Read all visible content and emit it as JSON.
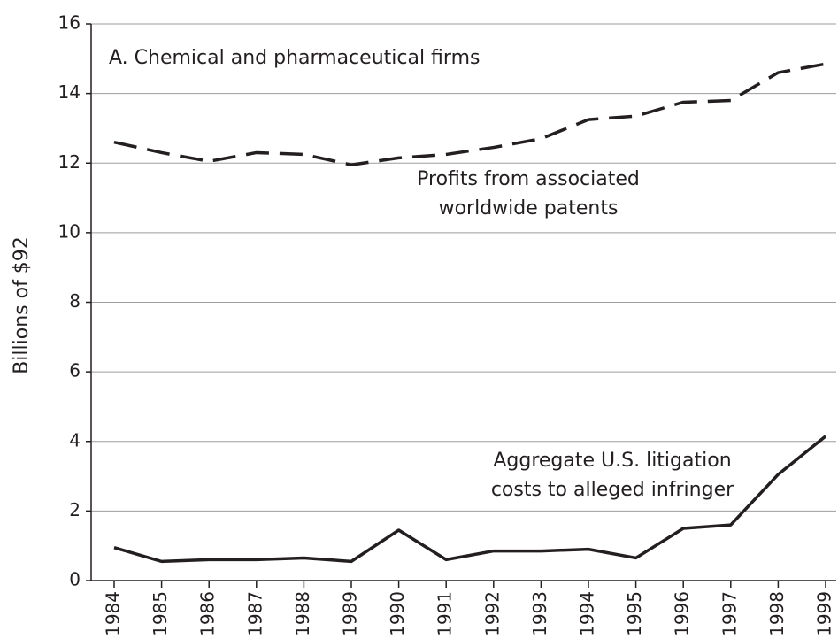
{
  "chart_data": {
    "type": "line",
    "y_label": "Billions of $92",
    "categories": [
      "1984",
      "1985",
      "1986",
      "1987",
      "1988",
      "1989",
      "1990",
      "1991",
      "1992",
      "1993",
      "1994",
      "1995",
      "1996",
      "1997",
      "1998",
      "1999"
    ],
    "series": [
      {
        "color": "#231f20",
        "style": "dashed",
        "values": [
          12.6,
          12.3,
          12.05,
          12.3,
          12.25,
          11.95,
          12.15,
          12.25,
          12.45,
          12.7,
          13.25,
          13.35,
          13.75,
          13.8,
          14.6,
          14.85
        ]
      },
      {
        "color": "#231f20",
        "style": "solid",
        "values": [
          0.95,
          0.55,
          0.6,
          0.6,
          0.65,
          0.55,
          1.45,
          0.6,
          0.85,
          0.85,
          0.9,
          0.65,
          1.5,
          1.6,
          3.05,
          4.15
        ]
      }
    ],
    "annotations": [
      {
        "lines": [
          "A. Chemical and pharmaceutical firms"
        ]
      },
      {
        "lines": [
          "Profits from associated",
          "worldwide patents"
        ]
      },
      {
        "lines": [
          "Aggregate U.S. litigation",
          "costs to alleged infringer"
        ]
      }
    ],
    "ylim": [
      0,
      16
    ],
    "yticks": [
      0,
      2,
      4,
      6,
      8,
      10,
      12,
      14,
      16
    ],
    "grid": true
  }
}
